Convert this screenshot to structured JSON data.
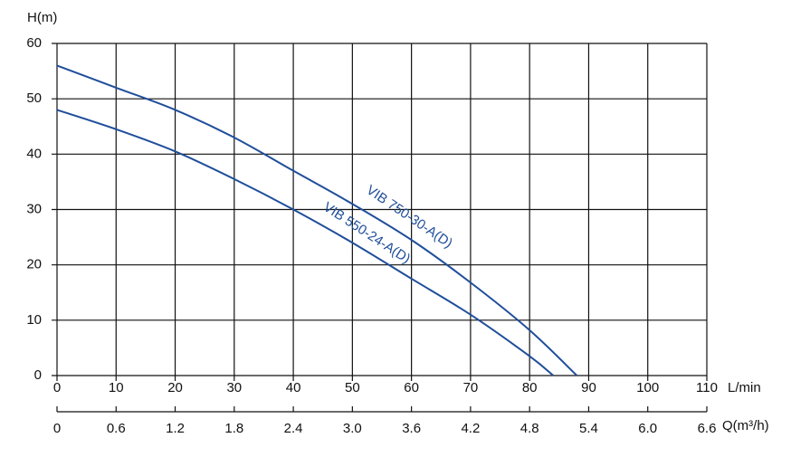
{
  "chart_data": {
    "type": "line",
    "y_label": "H(m)",
    "x_label": "L/min",
    "x2_label": "Q(m³/h)",
    "x": [
      0,
      10,
      20,
      30,
      40,
      50,
      60,
      70,
      80
    ],
    "series": [
      {
        "name": "VIB 750-30-A(D)",
        "color": "#1f4e9a",
        "x": [
          0,
          10,
          20,
          30,
          40,
          50,
          60,
          70,
          80,
          88
        ],
        "values": [
          56,
          52,
          48,
          43,
          37,
          31,
          24.5,
          16.8,
          8.2,
          0
        ]
      },
      {
        "name": "VIB 550-24-A(D)",
        "color": "#1f4e9a",
        "x": [
          0,
          10,
          20,
          30,
          40,
          50,
          60,
          70,
          80,
          84
        ],
        "values": [
          48,
          44.5,
          40.5,
          35.5,
          30,
          24,
          17.5,
          11,
          3.5,
          0
        ]
      }
    ],
    "xlim": [
      0,
      110
    ],
    "xticks": [
      0,
      10,
      20,
      30,
      40,
      50,
      60,
      70,
      80,
      90,
      100,
      110
    ],
    "ylim": [
      0,
      60
    ],
    "yticks": [
      0,
      10,
      20,
      30,
      40,
      50,
      60
    ],
    "x2lim": [
      0,
      6.6
    ],
    "x2ticks": [
      0,
      0.6,
      1.2,
      1.8,
      2.4,
      {
        "value": 3,
        "label": "3.0"
      },
      3.6,
      4.2,
      4.8,
      5.4,
      {
        "value": 6,
        "label": "6.0"
      },
      6.6
    ],
    "grid": true
  }
}
